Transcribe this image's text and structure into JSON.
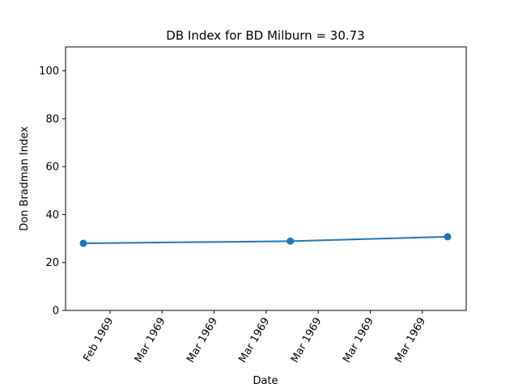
{
  "chart_data": {
    "type": "line",
    "title": "DB Index for BD Milburn = 30.73",
    "xlabel": "Date",
    "ylabel": "Don Bradman Index",
    "ylim": [
      0,
      110
    ],
    "yticks": [
      0,
      20,
      40,
      60,
      80,
      100
    ],
    "xticks": [
      "Feb 1969",
      "Mar 1969",
      "Mar 1969",
      "Mar 1969",
      "Mar 1969",
      "Mar 1969",
      "Mar 1969"
    ],
    "grid": false,
    "color": "#1f77b4",
    "series": [
      {
        "x": [
          "1969-01-27",
          "1969-03-18",
          "1969-04-25"
        ],
        "y": [
          28.0,
          28.9,
          30.73
        ]
      }
    ]
  }
}
